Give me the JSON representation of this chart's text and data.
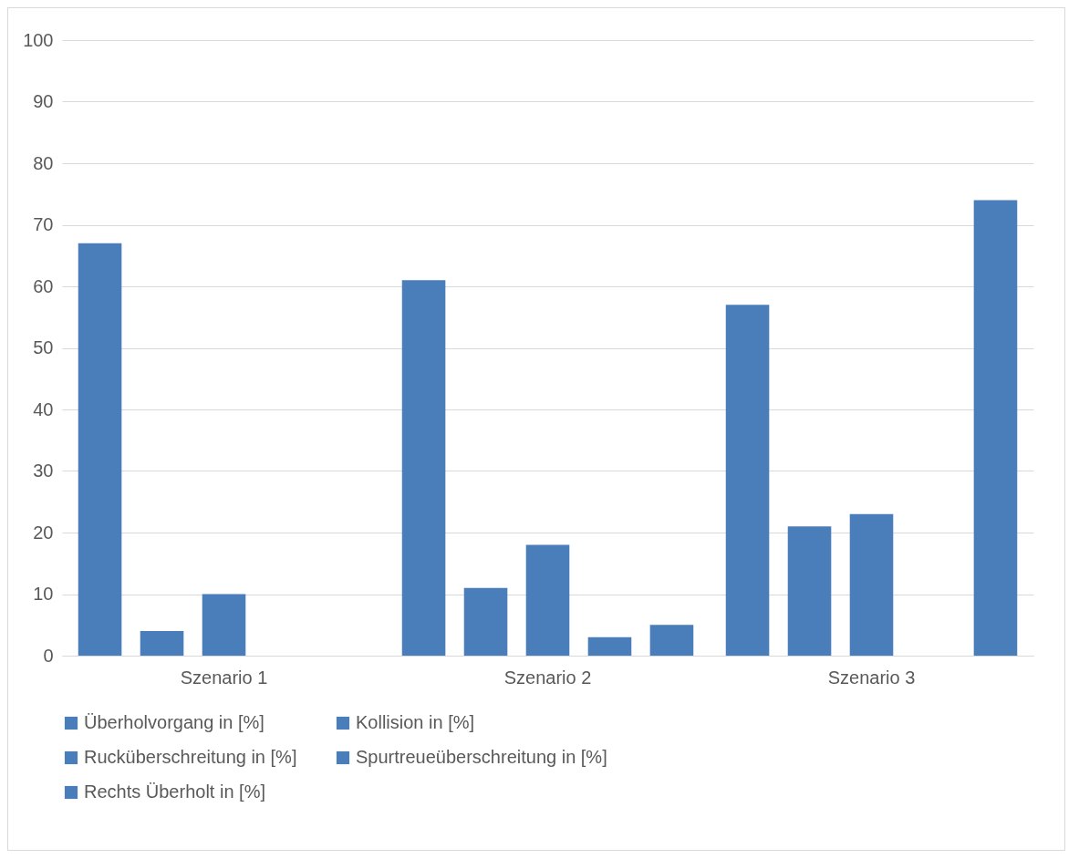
{
  "chart_data": {
    "type": "bar",
    "categories": [
      "Szenario 1",
      "Szenario 2",
      "Szenario 3"
    ],
    "series": [
      {
        "name": "Überholvorgang in [%]",
        "color": "#4a7ebb",
        "values": [
          67,
          61,
          57
        ]
      },
      {
        "name": "Kollision in [%]",
        "color": "#4a7ebb",
        "values": [
          4,
          11,
          21
        ]
      },
      {
        "name": "Rucküberschreitung in [%]",
        "color": "#4a7ebb",
        "values": [
          10,
          18,
          23
        ]
      },
      {
        "name": "Spurtreueüberschreitung in [%]",
        "color": "#4a7ebb",
        "values": [
          0,
          3,
          0
        ]
      },
      {
        "name": "Rechts Überholt in [%]",
        "color": "#4a7ebb",
        "values": [
          0,
          5,
          74
        ]
      }
    ],
    "ylim": [
      0,
      100
    ],
    "yticks": [
      0,
      10,
      20,
      30,
      40,
      50,
      60,
      70,
      80,
      90,
      100
    ],
    "grid": "y",
    "legend": "bottom"
  }
}
